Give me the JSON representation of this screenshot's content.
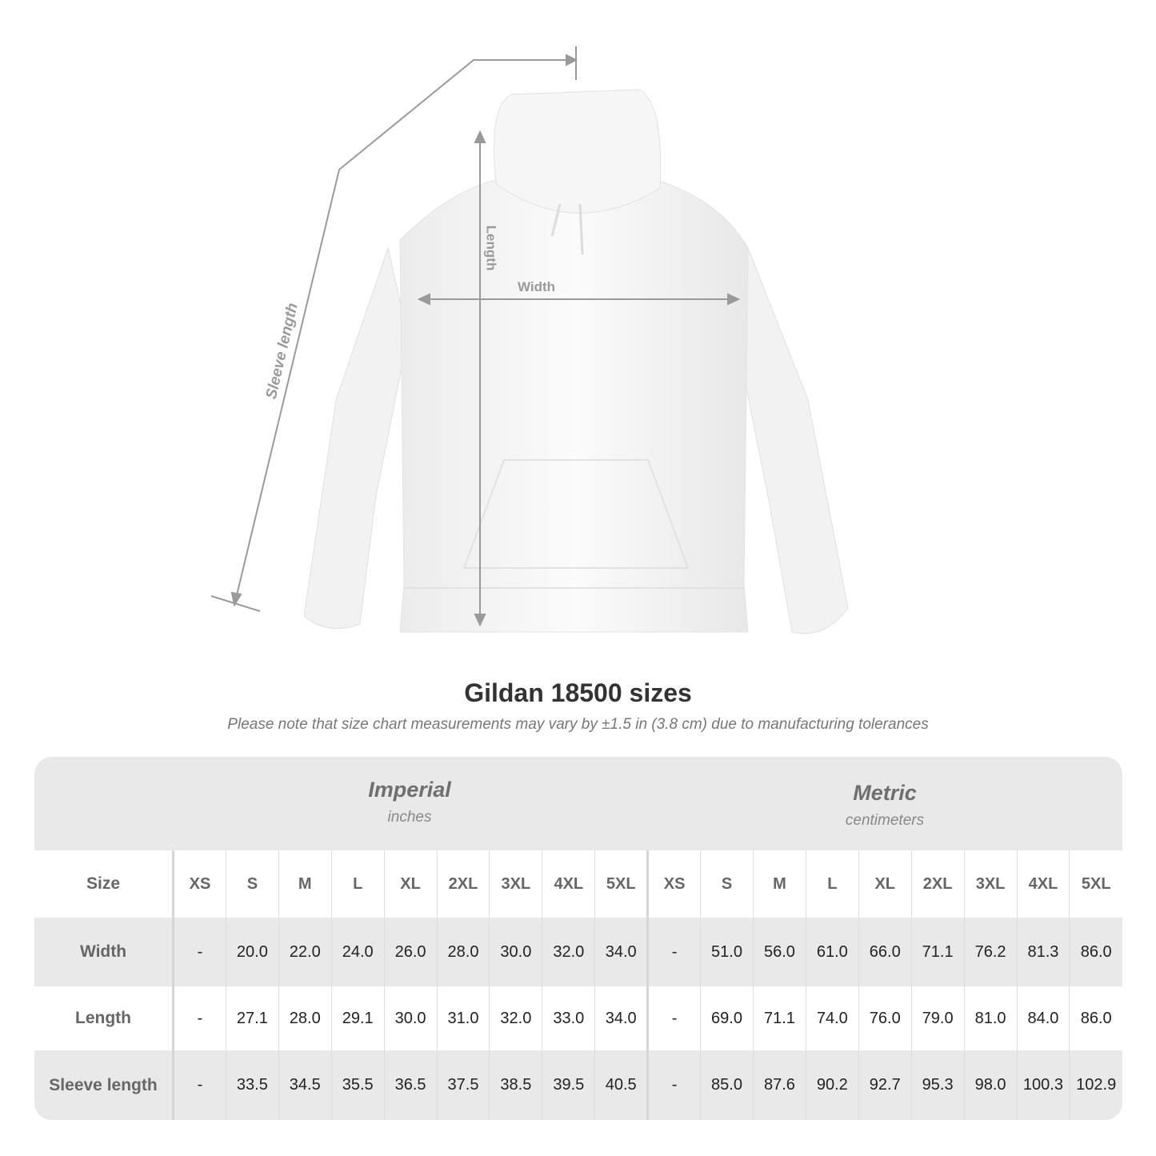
{
  "illustration": {
    "labels": {
      "length": "Length",
      "width": "Width",
      "sleeve": "Sleeve length"
    }
  },
  "title": "Gildan 18500 sizes",
  "note": "Please note that size chart measurements may vary by ±1.5 in (3.8 cm) due to manufacturing tolerances",
  "imperial": {
    "title": "Imperial",
    "unit": "inches"
  },
  "metric": {
    "title": "Metric",
    "unit": "centimeters"
  },
  "table": {
    "size_label": "Size",
    "sizes": [
      "XS",
      "S",
      "M",
      "L",
      "XL",
      "2XL",
      "3XL",
      "4XL",
      "5XL"
    ],
    "rows": [
      {
        "label": "Width",
        "imperial": [
          "-",
          "20.0",
          "22.0",
          "24.0",
          "26.0",
          "28.0",
          "30.0",
          "32.0",
          "34.0"
        ],
        "metric": [
          "-",
          "51.0",
          "56.0",
          "61.0",
          "66.0",
          "71.1",
          "76.2",
          "81.3",
          "86.0"
        ]
      },
      {
        "label": "Length",
        "imperial": [
          "-",
          "27.1",
          "28.0",
          "29.1",
          "30.0",
          "31.0",
          "32.0",
          "33.0",
          "34.0"
        ],
        "metric": [
          "-",
          "69.0",
          "71.1",
          "74.0",
          "76.0",
          "79.0",
          "81.0",
          "84.0",
          "86.0"
        ]
      },
      {
        "label": "Sleeve length",
        "imperial": [
          "-",
          "33.5",
          "34.5",
          "35.5",
          "36.5",
          "37.5",
          "38.5",
          "39.5",
          "40.5"
        ],
        "metric": [
          "-",
          "85.0",
          "87.6",
          "90.2",
          "92.7",
          "95.3",
          "98.0",
          "100.3",
          "102.9"
        ]
      }
    ]
  },
  "colors": {
    "panel": "#e9e9e9",
    "label": "#666666",
    "measure_line": "#9a9a9a"
  }
}
